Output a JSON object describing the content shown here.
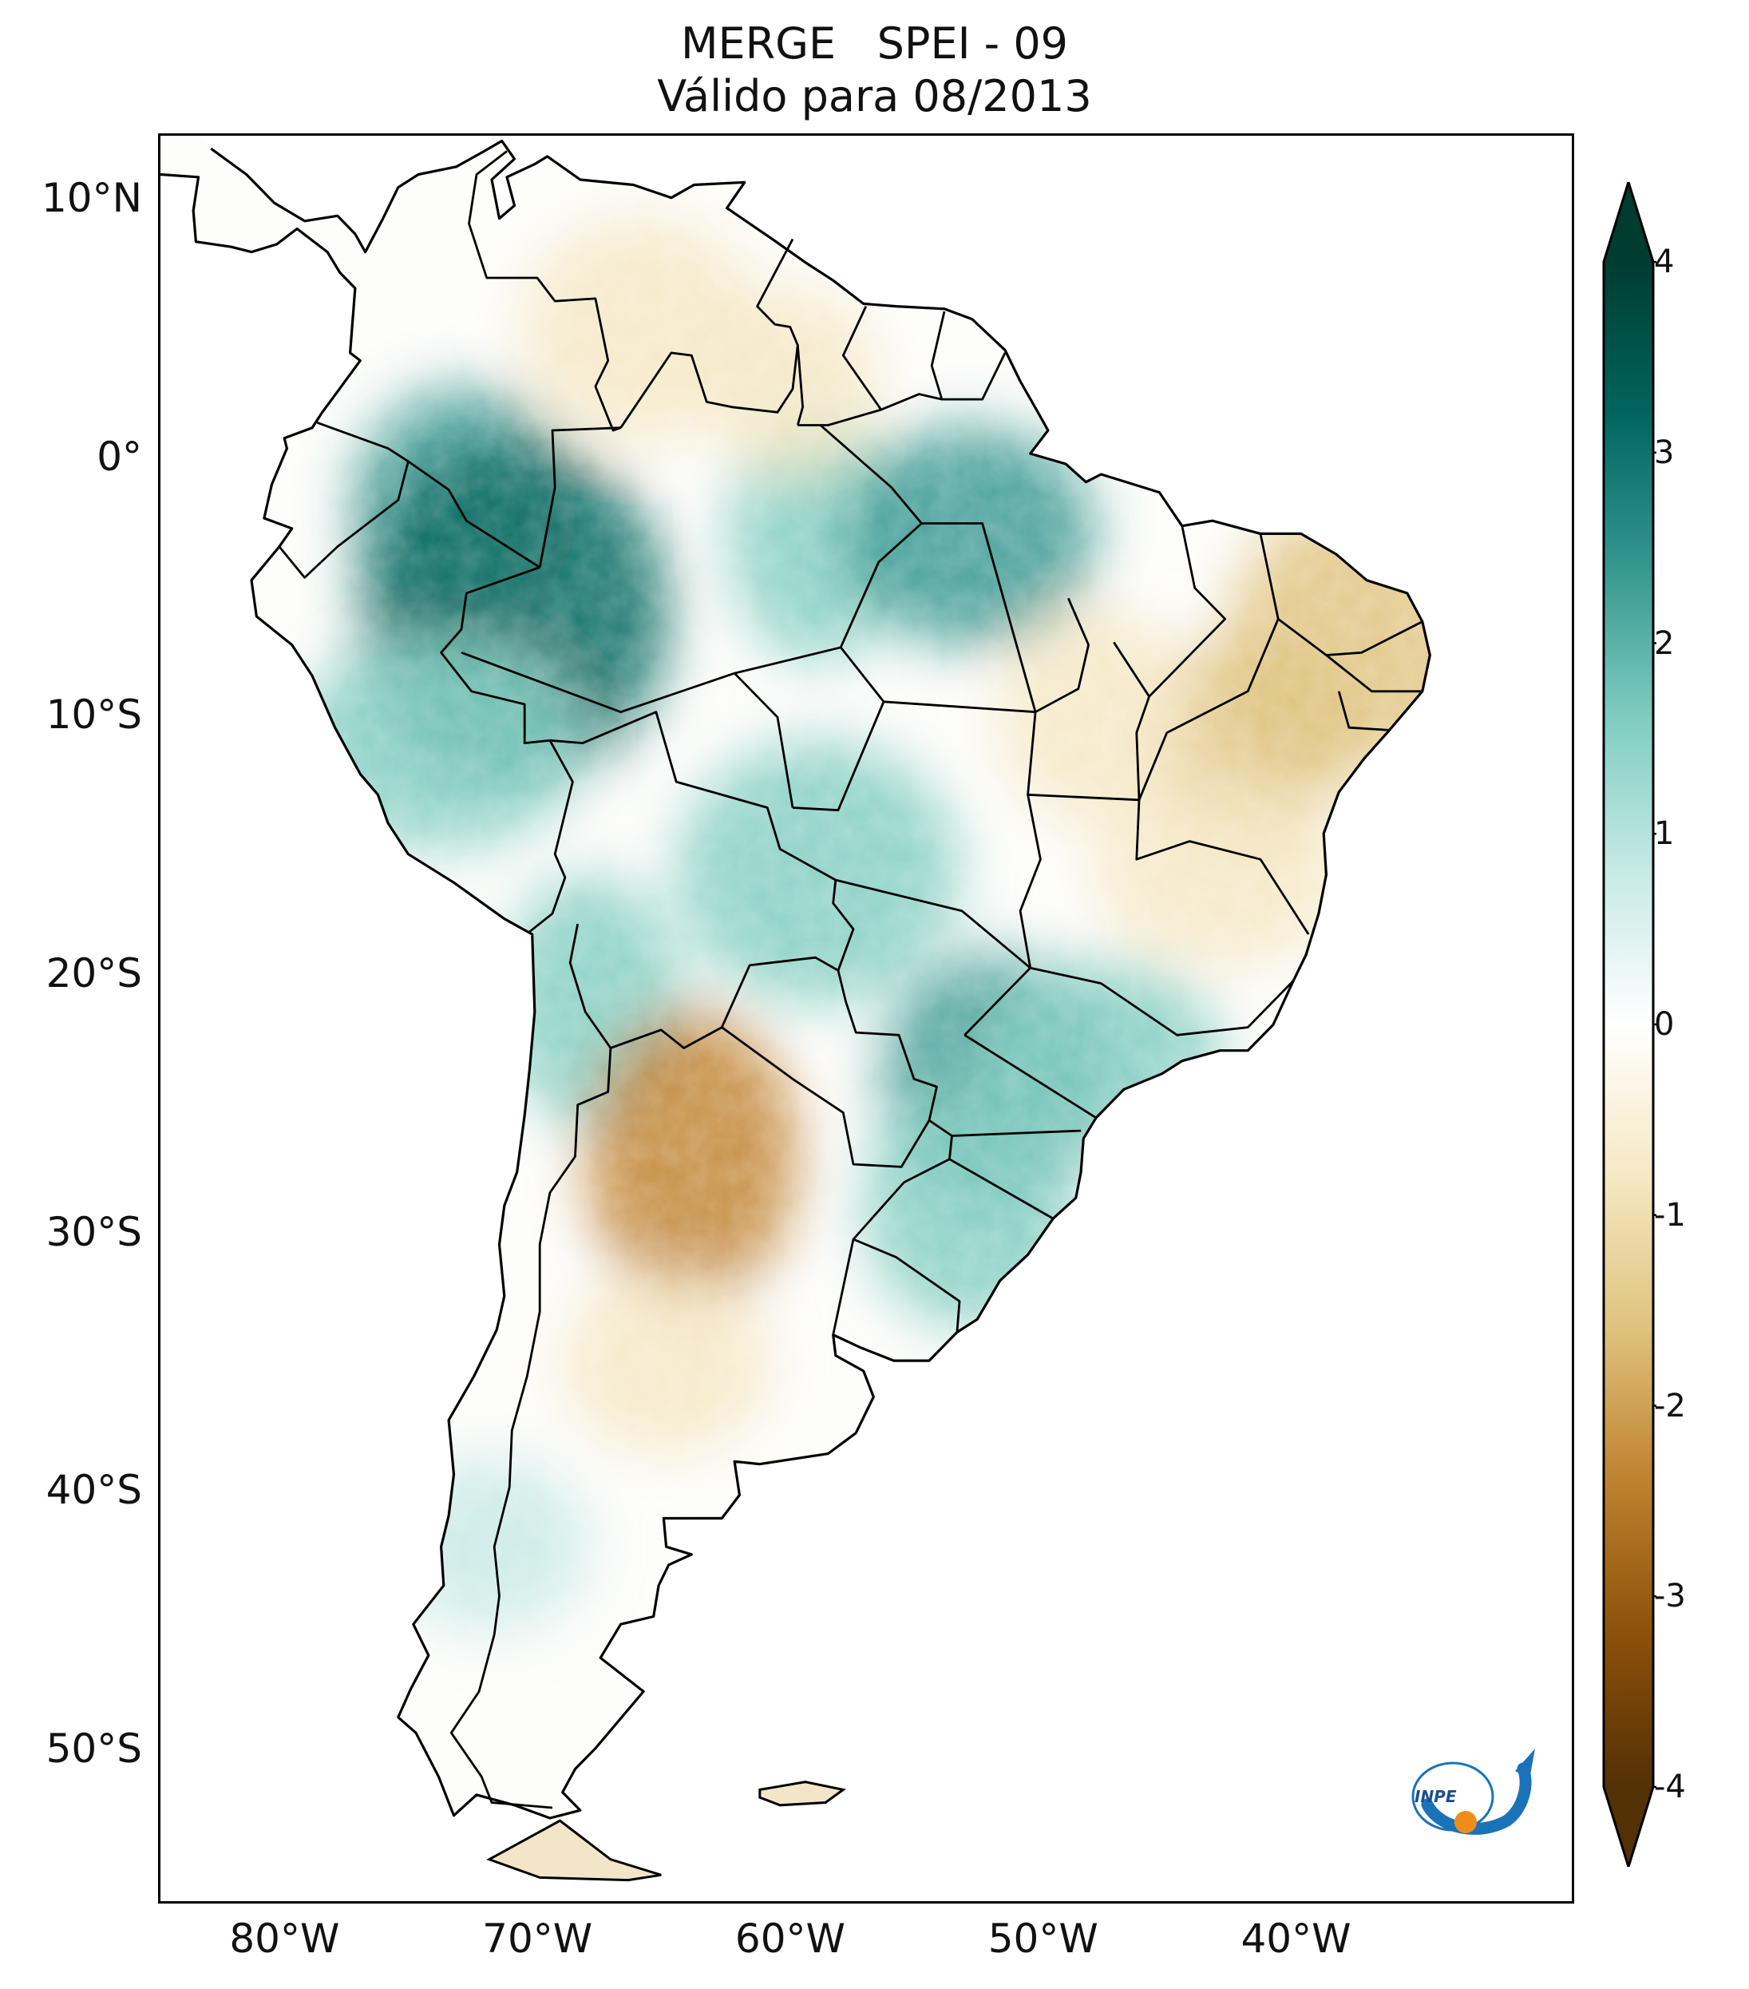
{
  "title": {
    "line1": "MERGE   SPEI - 09",
    "line2": "Válido para 08/2013"
  },
  "map": {
    "projection": "PlateCarree",
    "extent_lon": [
      -85.0,
      -29.0
    ],
    "extent_lat": [
      -56.0,
      12.5
    ],
    "lat_ticks": [
      {
        "value": 10,
        "label": "10°N"
      },
      {
        "value": 0,
        "label": "0°"
      },
      {
        "value": -10,
        "label": "10°S"
      },
      {
        "value": -20,
        "label": "20°S"
      },
      {
        "value": -30,
        "label": "30°S"
      },
      {
        "value": -40,
        "label": "40°S"
      },
      {
        "value": -50,
        "label": "50°S"
      }
    ],
    "lon_ticks": [
      {
        "value": -80,
        "label": "80°W"
      },
      {
        "value": -70,
        "label": "70°W"
      },
      {
        "value": -60,
        "label": "60°W"
      },
      {
        "value": -50,
        "label": "50°W"
      },
      {
        "value": -40,
        "label": "40°W"
      }
    ],
    "field": "SPEI-9 anomaly",
    "wet_regions": [
      {
        "lon": -73,
        "lat": -2,
        "value": 2.5
      },
      {
        "lon": -71,
        "lat": -6,
        "value": 3.0
      },
      {
        "lon": -74,
        "lat": -11,
        "value": 1.8
      },
      {
        "lon": -59,
        "lat": -3,
        "value": 1.5
      },
      {
        "lon": -53,
        "lat": -3,
        "value": 2.0
      },
      {
        "lon": -59,
        "lat": -16,
        "value": 1.7
      },
      {
        "lon": -52,
        "lat": -24,
        "value": 2.6
      },
      {
        "lon": -53,
        "lat": -29,
        "value": 1.3
      },
      {
        "lon": -48,
        "lat": -23,
        "value": 1.2
      },
      {
        "lon": -68,
        "lat": -21,
        "value": 1.5
      },
      {
        "lon": -72,
        "lat": -42,
        "value": 1.0
      }
    ],
    "dry_regions": [
      {
        "lon": -42,
        "lat": -11,
        "value": -1.9
      },
      {
        "lon": -38,
        "lat": -7,
        "value": -1.8
      },
      {
        "lon": -43,
        "lat": -16,
        "value": -1.3
      },
      {
        "lon": -64,
        "lat": -27,
        "value": -2.2
      },
      {
        "lon": -65,
        "lat": -35,
        "value": -1.2
      },
      {
        "lon": -66,
        "lat": 5,
        "value": -1.1
      },
      {
        "lon": -60,
        "lat": 3,
        "value": -1.3
      },
      {
        "lon": -48,
        "lat": -10,
        "value": -1.0
      }
    ]
  },
  "colorbar": {
    "min": -4,
    "max": 4,
    "extend": "both",
    "ticks": [
      "4",
      "3",
      "2",
      "1",
      "0",
      "-1",
      "-2",
      "-3",
      "-4"
    ],
    "colors": {
      "dry_extreme": "#543005",
      "dry_strong": "#8c510a",
      "dry_mid": "#bf812d",
      "dry_light": "#dfc27d",
      "dry_faint": "#f6e8c3",
      "neutral": "#ffffff",
      "wet_faint": "#c7eae5",
      "wet_light": "#80cdc1",
      "wet_mid": "#35978f",
      "wet_strong": "#01665e",
      "wet_extreme": "#003c30"
    }
  },
  "logo": {
    "text": "INPE",
    "colors": {
      "blue": "#1a73b8",
      "orange": "#f08c1a"
    }
  }
}
